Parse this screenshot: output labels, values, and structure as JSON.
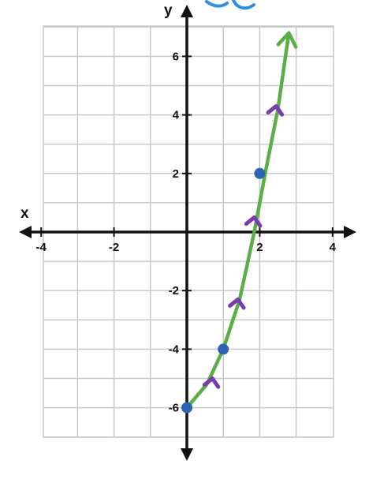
{
  "chart_data": {
    "type": "line",
    "title": "",
    "xlabel": "x",
    "ylabel": "y",
    "xlim": [
      -4,
      4
    ],
    "ylim": [
      -6,
      7
    ],
    "x_ticks": [
      -4,
      -2,
      2,
      4
    ],
    "y_ticks": [
      -6,
      -4,
      -2,
      2,
      4,
      6
    ],
    "x_tick_labels": [
      "-4",
      "-2",
      "2",
      "4"
    ],
    "y_tick_labels": [
      "-6",
      "-4",
      "-2",
      "2",
      "4",
      "6"
    ],
    "grid": true,
    "legend": "none",
    "points": [
      {
        "x": 0,
        "y": -6
      },
      {
        "x": 1,
        "y": -4
      },
      {
        "x": 2,
        "y": 2
      }
    ],
    "line": {
      "x": [
        0,
        0.55,
        1,
        1.45,
        1.85,
        2.15,
        2.5,
        2.8
      ],
      "y": [
        -6,
        -5.2,
        -4,
        -2.3,
        0,
        2,
        4.2,
        6.8
      ]
    },
    "direction_arrows": [
      {
        "x": 0.7,
        "y": -5
      },
      {
        "x": 1.4,
        "y": -2.3
      },
      {
        "x": 1.85,
        "y": 0.5
      },
      {
        "x": 2.45,
        "y": 4.3
      }
    ],
    "colors": {
      "axes": "#111111",
      "grid": "#c9c9c9",
      "line": "#5aae46",
      "points": "#2d63b4",
      "arrows": "#7a3bb0",
      "scribble": "#2f8ee0"
    }
  }
}
